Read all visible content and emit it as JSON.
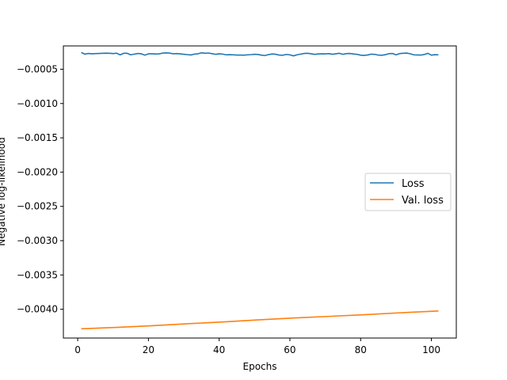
{
  "chart_data": {
    "type": "line",
    "title": "",
    "xlabel": "Epochs",
    "ylabel": "Negative log-likelihood",
    "xlim": [
      -4.05,
      107.05
    ],
    "ylim": [
      -0.00442,
      -0.00016
    ],
    "xticks": [
      0,
      20,
      40,
      60,
      80,
      100
    ],
    "xtick_labels": [
      "0",
      "20",
      "40",
      "60",
      "80",
      "100"
    ],
    "yticks": [
      -0.0005,
      -0.001,
      -0.0015,
      -0.002,
      -0.0025,
      -0.003,
      -0.0035,
      -0.004
    ],
    "ytick_labels": [
      "−0.0005",
      "−0.0010",
      "−0.0015",
      "−0.0020",
      "−0.0025",
      "−0.0030",
      "−0.0035",
      "−0.0040"
    ],
    "grid": false,
    "legend_position": "center-right",
    "series": [
      {
        "name": "Loss",
        "color": "#1f77b4",
        "x": [
          1,
          2,
          3,
          4,
          5,
          6,
          7,
          8,
          9,
          10,
          11,
          12,
          13,
          14,
          15,
          16,
          17,
          18,
          19,
          20,
          21,
          22,
          23,
          24,
          25,
          26,
          27,
          28,
          29,
          30,
          31,
          32,
          33,
          34,
          35,
          36,
          37,
          38,
          39,
          40,
          41,
          42,
          43,
          44,
          45,
          46,
          47,
          48,
          49,
          50,
          51,
          52,
          53,
          54,
          55,
          56,
          57,
          58,
          59,
          60,
          61,
          62,
          63,
          64,
          65,
          66,
          67,
          68,
          69,
          70,
          71,
          72,
          73,
          74,
          75,
          76,
          77,
          78,
          79,
          80,
          81,
          82,
          83,
          84,
          85,
          86,
          87,
          88,
          89,
          90,
          91,
          92,
          93,
          94,
          95,
          96,
          97,
          98,
          99,
          100,
          101,
          102
        ],
        "y": [
          -0.000255,
          -0.00028,
          -0.00027,
          -0.000275,
          -0.000272,
          -0.00027,
          -0.000268,
          -0.000266,
          -0.000267,
          -0.000272,
          -0.000266,
          -0.00029,
          -0.000268,
          -0.000268,
          -0.00029,
          -0.00028,
          -0.00027,
          -0.000275,
          -0.000295,
          -0.000275,
          -0.000275,
          -0.000278,
          -0.000276,
          -0.000265,
          -0.000262,
          -0.000265,
          -0.000275,
          -0.000272,
          -0.000276,
          -0.000282,
          -0.000287,
          -0.000292,
          -0.00028,
          -0.000275,
          -0.00026,
          -0.000268,
          -0.000264,
          -0.000273,
          -0.000283,
          -0.000275,
          -0.00028,
          -0.00029,
          -0.000288,
          -0.00029,
          -0.000294,
          -0.000293,
          -0.000295,
          -0.00029,
          -0.000287,
          -0.000282,
          -0.000285,
          -0.000295,
          -0.0003,
          -0.000286,
          -0.000278,
          -0.000282,
          -0.000294,
          -0.000296,
          -0.000284,
          -0.00029,
          -0.000305,
          -0.00029,
          -0.00028,
          -0.00027,
          -0.000268,
          -0.000275,
          -0.000283,
          -0.000278,
          -0.000275,
          -0.000276,
          -0.000272,
          -0.000282,
          -0.000275,
          -0.000268,
          -0.000283,
          -0.000272,
          -0.00027,
          -0.000278,
          -0.000283,
          -0.000295,
          -0.000298,
          -0.000292,
          -0.00028,
          -0.000283,
          -0.000294,
          -0.000296,
          -0.000288,
          -0.000273,
          -0.00027,
          -0.00029,
          -0.000272,
          -0.000268,
          -0.000265,
          -0.000274,
          -0.00029,
          -0.000292,
          -0.000294,
          -0.000285,
          -0.000268,
          -0.000295,
          -0.000288,
          -0.00029
        ]
      },
      {
        "name": "Val. loss",
        "color": "#ff7f0e",
        "x": [
          1,
          11,
          21,
          31,
          41,
          51,
          61,
          71,
          81,
          91,
          102
        ],
        "y": [
          -0.004285,
          -0.004265,
          -0.00424,
          -0.004212,
          -0.004185,
          -0.004155,
          -0.004128,
          -0.004104,
          -0.00408,
          -0.004052,
          -0.004025
        ]
      }
    ]
  }
}
